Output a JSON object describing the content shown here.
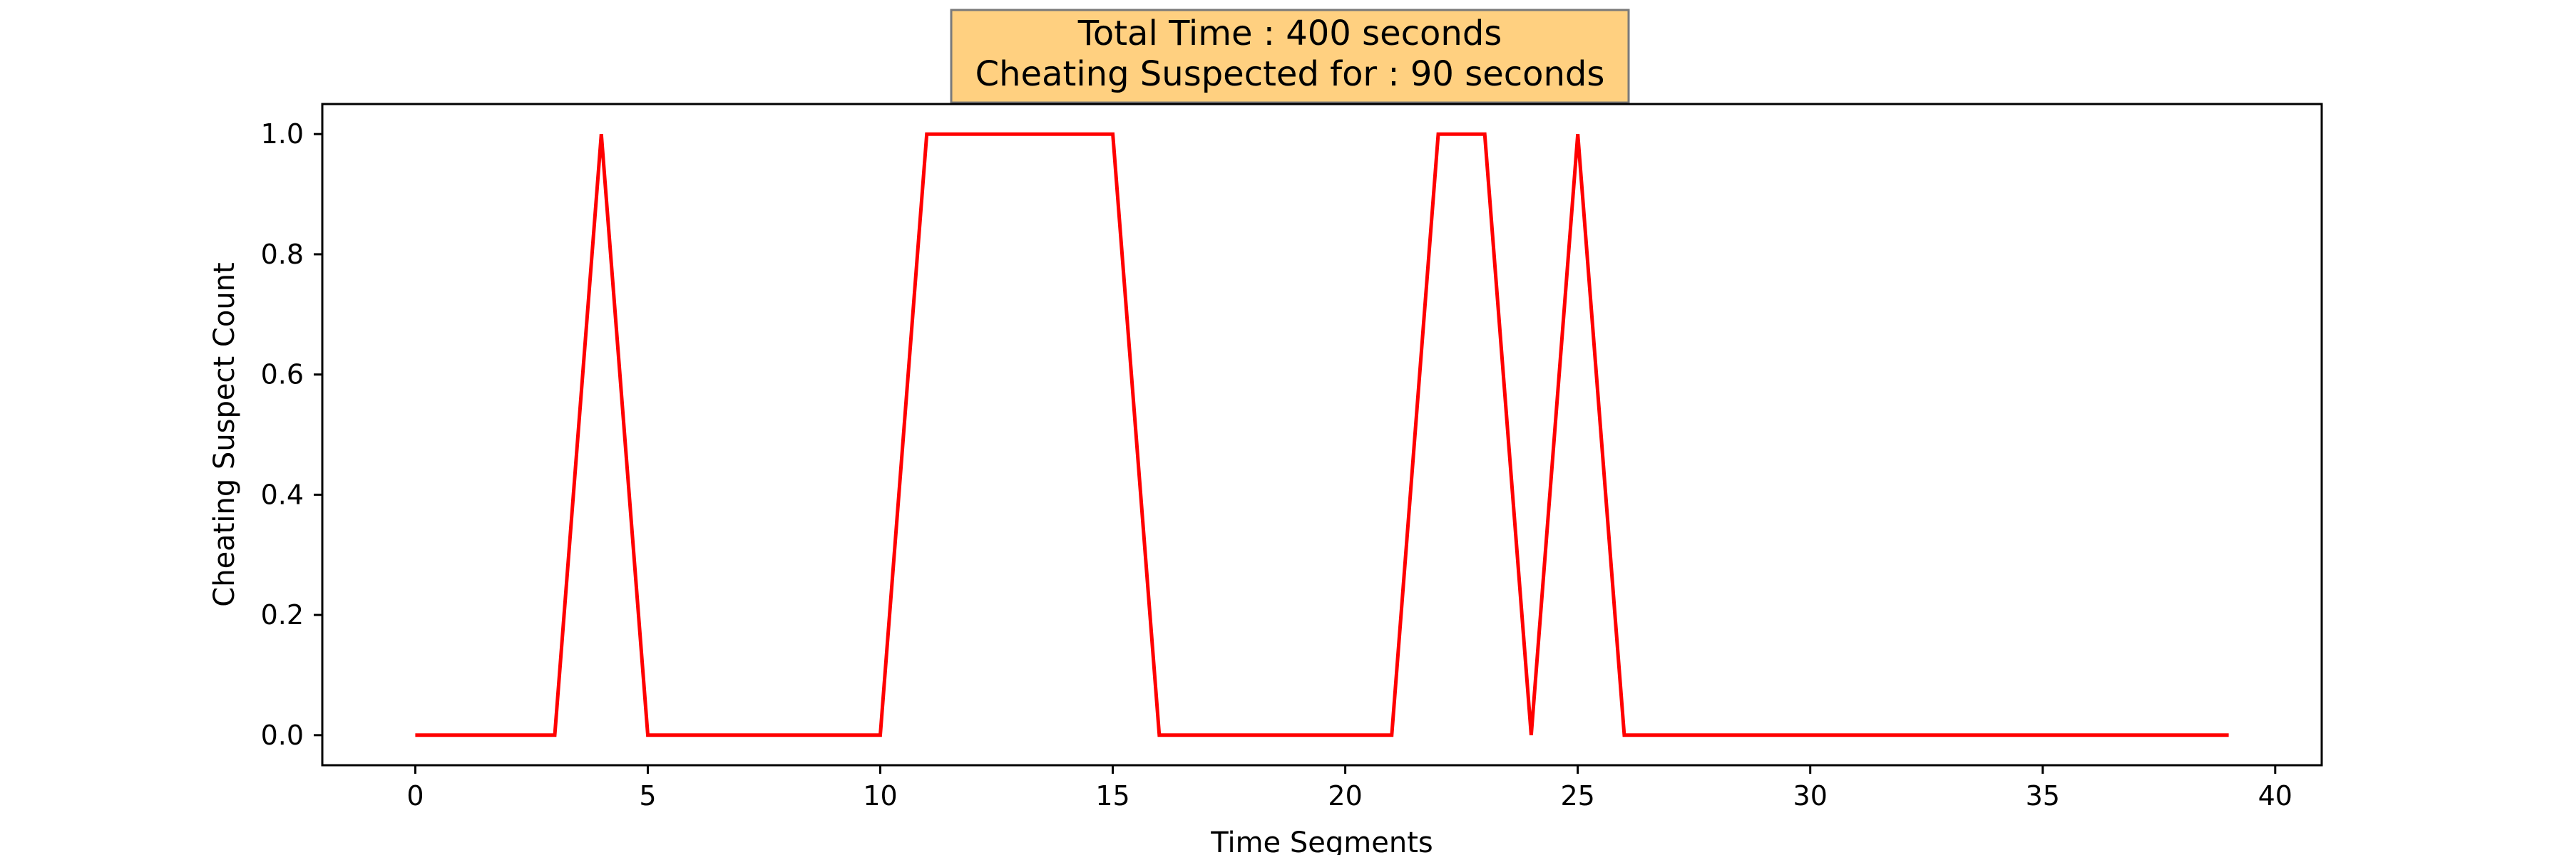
{
  "chart_data": {
    "type": "line",
    "title_lines": [
      "Total Time : 400 seconds",
      "Cheating Suspected for : 90 seconds"
    ],
    "xlabel": "Time Segments",
    "ylabel": "Cheating Suspect Count",
    "xlim": [
      -2,
      41
    ],
    "ylim": [
      -0.05,
      1.05
    ],
    "xticks": [
      0,
      5,
      10,
      15,
      20,
      25,
      30,
      35,
      40
    ],
    "yticks": [
      0.0,
      0.2,
      0.4,
      0.6,
      0.8,
      1.0
    ],
    "ytick_labels": [
      "0.0",
      "0.2",
      "0.4",
      "0.6",
      "0.8",
      "1.0"
    ],
    "grid": false,
    "series": [
      {
        "color": "#ff0000",
        "x": [
          0,
          1,
          2,
          3,
          4,
          5,
          6,
          7,
          8,
          9,
          10,
          11,
          12,
          13,
          14,
          15,
          16,
          17,
          18,
          19,
          20,
          21,
          22,
          23,
          24,
          25,
          26,
          27,
          28,
          29,
          30,
          31,
          32,
          33,
          34,
          35,
          36,
          37,
          38,
          39
        ],
        "y": [
          0,
          0,
          0,
          0,
          1,
          0,
          0,
          0,
          0,
          0,
          0,
          1,
          1,
          1,
          1,
          1,
          0,
          0,
          0,
          0,
          0,
          0,
          1,
          1,
          0,
          1,
          0,
          0,
          0,
          0,
          0,
          0,
          0,
          0,
          0,
          0,
          0,
          0,
          0,
          0
        ]
      }
    ],
    "title_box_color": "#ffd080"
  }
}
